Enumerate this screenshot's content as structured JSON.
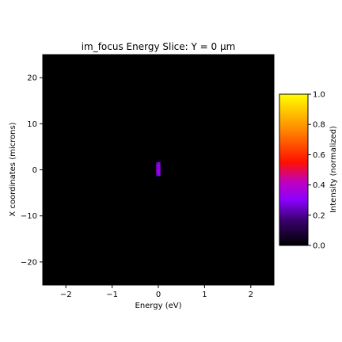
{
  "chart_data": {
    "type": "heatmap",
    "title": "im_focus Energy Slice: Y = 0 µm",
    "xlabel": "Energy (eV)",
    "ylabel": "X coordinates (microns)",
    "xlim": [
      -2.5,
      2.5
    ],
    "ylim": [
      -25,
      25
    ],
    "xticks": [
      -2,
      -1,
      0,
      1,
      2
    ],
    "yticks": [
      -20,
      -10,
      0,
      10,
      20
    ],
    "background_value": 0,
    "spot": {
      "x_range": [
        -0.05,
        0.05
      ],
      "y_range": [
        -1.6,
        1.6
      ],
      "cells": [
        {
          "x": -0.02,
          "y": 1.4,
          "v": 0.28
        },
        {
          "x": 0.02,
          "y": 1.4,
          "v": 0.32
        },
        {
          "x": -0.02,
          "y": 0.9,
          "v": 0.42
        },
        {
          "x": 0.02,
          "y": 0.9,
          "v": 0.38
        },
        {
          "x": -0.02,
          "y": 0.4,
          "v": 0.3
        },
        {
          "x": 0.02,
          "y": 0.4,
          "v": 0.35
        },
        {
          "x": -0.02,
          "y": -0.1,
          "v": 0.4
        },
        {
          "x": 0.02,
          "y": -0.1,
          "v": 0.36
        },
        {
          "x": -0.02,
          "y": -0.6,
          "v": 0.33
        },
        {
          "x": 0.02,
          "y": -0.6,
          "v": 0.41
        },
        {
          "x": -0.02,
          "y": -1.1,
          "v": 0.29
        },
        {
          "x": 0.02,
          "y": -1.1,
          "v": 0.34
        }
      ]
    },
    "colorbar": {
      "label": "Intensity (normalized)",
      "range": [
        0,
        1
      ],
      "ticks": [
        0.0,
        0.2,
        0.4,
        0.6,
        0.8,
        1.0
      ],
      "colormap": "gnuplot",
      "stops": [
        "#000000",
        "#3a0070",
        "#8a00ff",
        "#c000c0",
        "#ff1000",
        "#ff8000",
        "#ffff00"
      ]
    }
  }
}
